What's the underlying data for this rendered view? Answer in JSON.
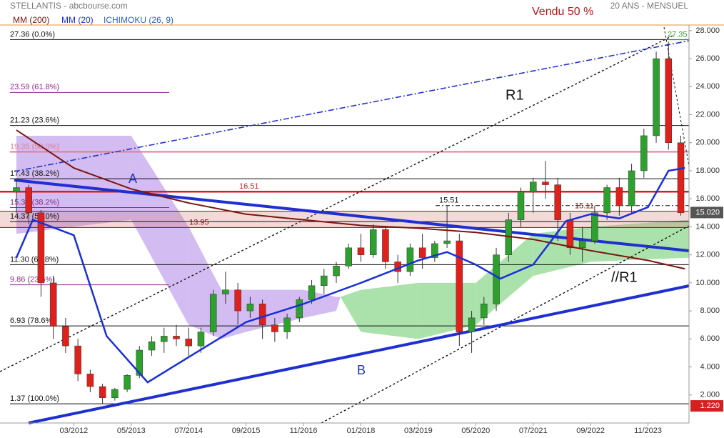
{
  "chart_data": {
    "type": "candlestick",
    "title": "STELLANTIS - abcbourse.com",
    "subtitle": "20 ANS - MENSUEL",
    "annotation_top": "Vendu 50 %",
    "xlim": [
      "2010-09",
      "2024-09"
    ],
    "xticks": [
      {
        "value": "2012-03",
        "label": "03/2012"
      },
      {
        "value": "2013-05",
        "label": "05/2013"
      },
      {
        "value": "2014-07",
        "label": "07/2014"
      },
      {
        "value": "2015-09",
        "label": "09/2015"
      },
      {
        "value": "2016-11",
        "label": "11/2016"
      },
      {
        "value": "2018-01",
        "label": "01/2018"
      },
      {
        "value": "2019-03",
        "label": "03/2019"
      },
      {
        "value": "2020-05",
        "label": "05/2020"
      },
      {
        "value": "2021-07",
        "label": "07/2021"
      },
      {
        "value": "2022-09",
        "label": "09/2022"
      },
      {
        "value": "2023-11",
        "label": "11/2023"
      }
    ],
    "ylim": [
      0,
      28.4
    ],
    "yticks": [
      {
        "value": 2,
        "label": "2.000"
      },
      {
        "value": 4,
        "label": "4.000"
      },
      {
        "value": 6,
        "label": "6.000"
      },
      {
        "value": 8,
        "label": "8.000"
      },
      {
        "value": 10,
        "label": "10.000"
      },
      {
        "value": 12,
        "label": "12.000"
      },
      {
        "value": 14,
        "label": "14.000"
      },
      {
        "value": 16,
        "label": "16.000"
      },
      {
        "value": 18,
        "label": "18.000"
      },
      {
        "value": 20,
        "label": "20.000"
      },
      {
        "value": 22,
        "label": "22.000"
      },
      {
        "value": 24,
        "label": "24.000"
      },
      {
        "value": 26,
        "label": "26.000"
      },
      {
        "value": 28,
        "label": "28.000"
      }
    ],
    "candles": {
      "up_color": "#2ea02e",
      "down_color": "#e0201b",
      "x": [
        "2011-01",
        "2011-04",
        "2011-07",
        "2011-10",
        "2012-01",
        "2012-04",
        "2012-07",
        "2012-10",
        "2013-01",
        "2013-04",
        "2013-07",
        "2013-10",
        "2014-01",
        "2014-04",
        "2014-07",
        "2014-10",
        "2015-01",
        "2015-04",
        "2015-07",
        "2015-10",
        "2016-01",
        "2016-04",
        "2016-07",
        "2016-10",
        "2017-01",
        "2017-04",
        "2017-07",
        "2017-10",
        "2018-01",
        "2018-04",
        "2018-07",
        "2018-10",
        "2019-01",
        "2019-04",
        "2019-07",
        "2019-10",
        "2020-01",
        "2020-04",
        "2020-07",
        "2020-10",
        "2021-01",
        "2021-04",
        "2021-07",
        "2021-10",
        "2022-01",
        "2022-04",
        "2022-07",
        "2022-10",
        "2023-01",
        "2023-04",
        "2023-07",
        "2023-10",
        "2024-01",
        "2024-04",
        "2024-07"
      ],
      "open": [
        16.5,
        16.8,
        15.0,
        10.0,
        6.9,
        5.5,
        3.5,
        2.6,
        1.8,
        2.4,
        3.4,
        5.2,
        5.8,
        6.2,
        6.0,
        5.5,
        6.5,
        9.2,
        9.5,
        8.0,
        8.5,
        7.0,
        6.5,
        7.5,
        8.8,
        9.8,
        10.5,
        11.2,
        12.5,
        12.0,
        13.8,
        11.5,
        10.8,
        12.5,
        11.8,
        12.8,
        13.0,
        6.5,
        7.5,
        8.5,
        12.0,
        14.5,
        16.5,
        17.2,
        17.0,
        14.5,
        12.5,
        13.0,
        15.0,
        16.8,
        15.5,
        18.0,
        20.5,
        26.0,
        20.0
      ],
      "high": [
        17.4,
        17.0,
        15.2,
        10.5,
        7.5,
        6.0,
        3.8,
        2.8,
        2.5,
        3.5,
        5.5,
        6.2,
        6.8,
        7.0,
        6.8,
        6.8,
        9.5,
        10.8,
        10.0,
        9.0,
        8.8,
        7.5,
        7.8,
        9.0,
        10.2,
        11.0,
        11.5,
        12.8,
        13.5,
        14.2,
        14.0,
        12.0,
        12.8,
        13.5,
        13.0,
        15.5,
        13.5,
        8.0,
        9.0,
        12.5,
        15.0,
        16.8,
        17.5,
        18.7,
        17.5,
        15.0,
        14.0,
        15.5,
        17.0,
        17.5,
        18.5,
        21.0,
        26.5,
        27.2,
        20.5
      ],
      "low": [
        15.0,
        14.2,
        9.0,
        6.0,
        5.0,
        3.0,
        2.2,
        1.4,
        1.6,
        2.2,
        3.2,
        4.8,
        5.0,
        5.5,
        4.8,
        5.0,
        6.2,
        8.5,
        7.0,
        7.5,
        6.0,
        5.8,
        6.0,
        7.2,
        8.5,
        9.2,
        10.0,
        11.0,
        11.5,
        11.8,
        11.0,
        10.0,
        10.5,
        11.0,
        11.5,
        12.5,
        5.5,
        5.0,
        7.0,
        8.0,
        11.5,
        14.0,
        15.0,
        16.0,
        13.0,
        12.0,
        11.5,
        12.8,
        14.5,
        14.8,
        15.0,
        17.5,
        20.0,
        19.5,
        14.8
      ],
      "close": [
        16.8,
        15.0,
        10.0,
        6.9,
        5.5,
        3.5,
        2.6,
        1.8,
        2.4,
        3.4,
        5.2,
        5.8,
        6.2,
        6.0,
        5.5,
        6.5,
        9.2,
        9.5,
        8.0,
        8.5,
        7.0,
        6.5,
        7.5,
        8.8,
        9.8,
        10.5,
        11.2,
        12.5,
        12.0,
        13.8,
        11.5,
        10.8,
        12.5,
        11.8,
        12.8,
        13.0,
        6.5,
        7.5,
        8.5,
        12.0,
        14.5,
        16.5,
        17.2,
        17.0,
        14.5,
        12.5,
        13.0,
        15.0,
        16.8,
        15.5,
        18.0,
        20.5,
        26.0,
        20.0,
        15.0
      ]
    },
    "series": [
      {
        "name": "MM (200)",
        "color": "#7b1510",
        "x": [
          "2011-01",
          "2012-03",
          "2013-05",
          "2014-07",
          "2015-09",
          "2016-11",
          "2018-01",
          "2019-03",
          "2020-05",
          "2021-07",
          "2022-09",
          "2023-11",
          "2024-08"
        ],
        "values": [
          20.9,
          18.2,
          16.7,
          15.7,
          14.9,
          14.5,
          14.1,
          13.9,
          13.6,
          13.1,
          12.3,
          11.6,
          11.0
        ]
      },
      {
        "name": "MM (20)",
        "color": "#1a2fd6",
        "x": [
          "2011-01",
          "2011-05",
          "2012-03",
          "2012-11",
          "2013-09",
          "2014-07",
          "2015-09",
          "2016-11",
          "2018-01",
          "2019-03",
          "2019-10",
          "2020-05",
          "2020-11",
          "2021-07",
          "2022-03",
          "2022-09",
          "2023-04",
          "2023-11",
          "2024-04",
          "2024-08"
        ],
        "values": [
          11.8,
          14.5,
          13.4,
          6.2,
          2.9,
          4.7,
          7.2,
          8.5,
          10.0,
          11.6,
          12.2,
          11.3,
          10.3,
          11.3,
          14.4,
          14.9,
          14.6,
          15.4,
          18.0,
          18.2
        ]
      }
    ],
    "ichimoku": {
      "name": "ICHIMOKU (26, 9)",
      "legend_color": "#2f62c8",
      "bull_color": "#8fd88f",
      "bear_color": "#c3a6ec",
      "x": [
        "2011-01",
        "2012-03",
        "2013-05",
        "2014-07",
        "2015-03",
        "2015-09",
        "2016-11",
        "2017-07",
        "2017-08",
        "2018-01",
        "2019-03",
        "2020-05",
        "2021-07",
        "2022-09",
        "2024-09"
      ],
      "span_a": [
        13.5,
        14.0,
        14.5,
        7.0,
        6.0,
        6.5,
        7.5,
        8.0,
        9.0,
        9.5,
        10.0,
        10.0,
        13.5,
        14.0,
        14.5
      ],
      "span_b": [
        20.5,
        20.5,
        20.5,
        14.0,
        9.5,
        9.5,
        9.5,
        9.0,
        9.0,
        6.5,
        6.0,
        7.0,
        10.5,
        11.5,
        11.8
      ]
    },
    "fib_levels": [
      {
        "value": 27.36,
        "label": "27.36 (0.0%)",
        "color": "#111111"
      },
      {
        "value": 23.59,
        "label": "23.59 (61.8%)",
        "color": "#8a2a8a"
      },
      {
        "value": 21.23,
        "label": "21.23 (23.6%)",
        "color": "#111111"
      },
      {
        "value": 19.35,
        "label": "19.35 (50.0%)",
        "color": "#e67a95"
      },
      {
        "value": 17.43,
        "label": "17.43 (38.2%)",
        "color": "#111111"
      },
      {
        "value": 15.37,
        "label": "15.37 (38.2%)",
        "color": "#8a2a8a"
      },
      {
        "value": 14.37,
        "label": "14.37 (50.0%)",
        "color": "#111111"
      },
      {
        "value": 11.3,
        "label": "11.30 (61.8%)",
        "color": "#111111"
      },
      {
        "value": 9.86,
        "label": "9.86 (23.6%)",
        "color": "#8a2a8a"
      },
      {
        "value": 6.93,
        "label": "6.93 (78.6%)",
        "color": "#111111"
      },
      {
        "value": 1.37,
        "label": "1.37 (100.0%)",
        "color": "#111111"
      }
    ],
    "price_levels": [
      {
        "value": 16.51,
        "label": "16.51",
        "color": "#d42020"
      },
      {
        "value": 15.51,
        "label": "15.51",
        "color": "#111111"
      },
      {
        "value": 15.11,
        "label": "15.11",
        "color": "#7b1510"
      },
      {
        "value": 13.95,
        "label": "13.95",
        "color": "#7b1510"
      },
      {
        "value": 27.35,
        "label": "27.35",
        "color": "#2ea02e"
      }
    ],
    "last_price": {
      "value": 15.02,
      "label": "15.020"
    },
    "marker_price": {
      "value": 1.22,
      "label": "1.220"
    },
    "trend_labels": [
      "A",
      "B",
      "R1",
      "//R1"
    ]
  }
}
